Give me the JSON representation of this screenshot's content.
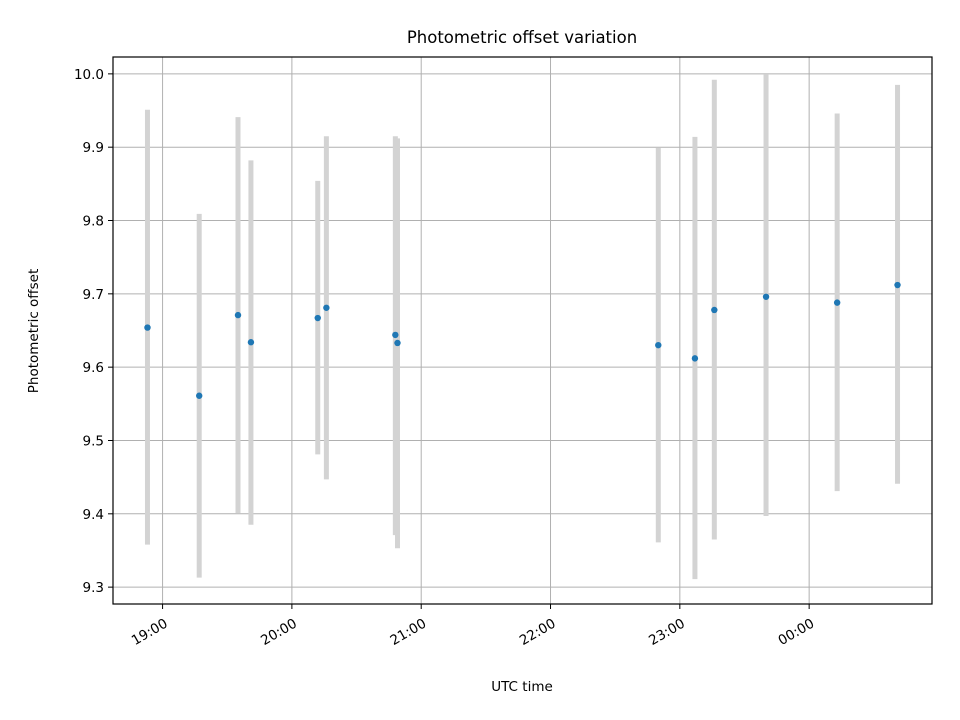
{
  "chart_data": {
    "type": "scatter",
    "title": "Photometric offset variation",
    "xlabel": "UTC time",
    "ylabel": "Photometric offset",
    "xlim": [
      "18:37",
      "00:57"
    ],
    "ylim": [
      9.277,
      10.023
    ],
    "x_ticks": [
      "19:00",
      "20:00",
      "21:00",
      "22:00",
      "23:00",
      "00:00"
    ],
    "y_ticks": [
      "9.3",
      "9.4",
      "9.5",
      "9.6",
      "9.7",
      "9.8",
      "9.9",
      "10.0"
    ],
    "grid": true,
    "point_color": "#1f77b4",
    "errorbar_color": "#d3d3d3",
    "points": [
      {
        "x": "18:53",
        "y": 9.654,
        "ylow": 9.358,
        "yhigh": 9.951
      },
      {
        "x": "19:17",
        "y": 9.561,
        "ylow": 9.313,
        "yhigh": 9.809
      },
      {
        "x": "19:35",
        "y": 9.671,
        "ylow": 9.401,
        "yhigh": 9.941
      },
      {
        "x": "19:41",
        "y": 9.634,
        "ylow": 9.385,
        "yhigh": 9.882
      },
      {
        "x": "20:12",
        "y": 9.667,
        "ylow": 9.481,
        "yhigh": 9.854
      },
      {
        "x": "20:16",
        "y": 9.681,
        "ylow": 9.447,
        "yhigh": 9.915
      },
      {
        "x": "20:48",
        "y": 9.644,
        "ylow": 9.371,
        "yhigh": 9.915
      },
      {
        "x": "20:49",
        "y": 9.633,
        "ylow": 9.353,
        "yhigh": 9.912
      },
      {
        "x": "22:50",
        "y": 9.63,
        "ylow": 9.361,
        "yhigh": 9.899
      },
      {
        "x": "23:07",
        "y": 9.612,
        "ylow": 9.311,
        "yhigh": 9.914
      },
      {
        "x": "23:16",
        "y": 9.678,
        "ylow": 9.365,
        "yhigh": 9.992
      },
      {
        "x": "23:40",
        "y": 9.696,
        "ylow": 9.397,
        "yhigh": 9.999
      },
      {
        "x": "00:13",
        "y": 9.688,
        "ylow": 9.431,
        "yhigh": 9.946
      },
      {
        "x": "00:41",
        "y": 9.712,
        "ylow": 9.441,
        "yhigh": 9.985
      }
    ]
  }
}
